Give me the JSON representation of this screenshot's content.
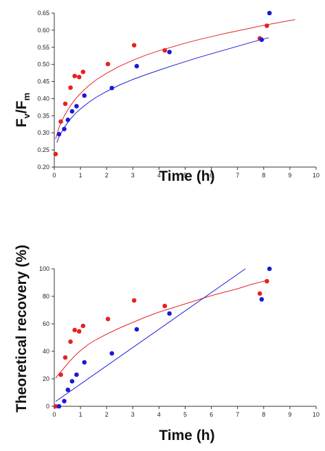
{
  "chart_data": [
    {
      "type": "scatter",
      "xlabel": "Time (h)",
      "ylabel_main": "F",
      "ylabel_sub1": "v",
      "ylabel_mid": "/F",
      "ylabel_sub2": "m",
      "xlim": [
        0,
        10
      ],
      "ylim": [
        0.2,
        0.65
      ],
      "xticks": [
        "0",
        "1",
        "2",
        "3",
        "4",
        "5",
        "6",
        "7",
        "8",
        "9",
        "10"
      ],
      "yticks": [
        "0.20",
        "0.25",
        "0.30",
        "0.35",
        "0.40",
        "0.45",
        "0.50",
        "0.55",
        "0.60",
        "0.65"
      ],
      "grid": false,
      "series": [
        {
          "color": "#e52222",
          "points": [
            [
              0.05,
              0.238
            ],
            [
              0.25,
              0.333
            ],
            [
              0.42,
              0.385
            ],
            [
              0.62,
              0.432
            ],
            [
              0.78,
              0.466
            ],
            [
              0.95,
              0.463
            ],
            [
              1.1,
              0.478
            ],
            [
              2.05,
              0.501
            ],
            [
              3.05,
              0.556
            ],
            [
              4.22,
              0.541
            ],
            [
              7.85,
              0.576
            ],
            [
              8.12,
              0.613
            ]
          ],
          "fit": [
            [
              0.05,
              0.282
            ],
            [
              0.2,
              0.32
            ],
            [
              0.4,
              0.352
            ],
            [
              0.6,
              0.378
            ],
            [
              0.8,
              0.398
            ],
            [
              1.0,
              0.415
            ],
            [
              1.3,
              0.437
            ],
            [
              1.6,
              0.455
            ],
            [
              2.0,
              0.474
            ],
            [
              2.5,
              0.495
            ],
            [
              3.0,
              0.512
            ],
            [
              3.5,
              0.527
            ],
            [
              4.0,
              0.54
            ],
            [
              4.5,
              0.551
            ],
            [
              5.0,
              0.562
            ],
            [
              5.5,
              0.572
            ],
            [
              6.0,
              0.581
            ],
            [
              6.5,
              0.59
            ],
            [
              7.0,
              0.598
            ],
            [
              7.5,
              0.606
            ],
            [
              8.0,
              0.614
            ],
            [
              8.5,
              0.621
            ],
            [
              9.2,
              0.631
            ]
          ]
        },
        {
          "color": "#1a1ad6",
          "points": [
            [
              0.18,
              0.296
            ],
            [
              0.38,
              0.311
            ],
            [
              0.52,
              0.338
            ],
            [
              0.68,
              0.363
            ],
            [
              0.85,
              0.378
            ],
            [
              1.15,
              0.409
            ],
            [
              2.2,
              0.431
            ],
            [
              3.15,
              0.495
            ],
            [
              4.4,
              0.536
            ],
            [
              7.92,
              0.572
            ],
            [
              8.22,
              0.65
            ]
          ],
          "fit": [
            [
              0.1,
              0.272
            ],
            [
              0.2,
              0.292
            ],
            [
              0.4,
              0.318
            ],
            [
              0.6,
              0.339
            ],
            [
              0.8,
              0.356
            ],
            [
              1.0,
              0.37
            ],
            [
              1.3,
              0.388
            ],
            [
              1.6,
              0.404
            ],
            [
              2.0,
              0.421
            ],
            [
              2.5,
              0.44
            ],
            [
              3.0,
              0.456
            ],
            [
              3.5,
              0.47
            ],
            [
              4.0,
              0.483
            ],
            [
              4.5,
              0.496
            ],
            [
              5.0,
              0.508
            ],
            [
              5.5,
              0.52
            ],
            [
              6.0,
              0.531
            ],
            [
              6.5,
              0.542
            ],
            [
              7.0,
              0.553
            ],
            [
              7.5,
              0.564
            ],
            [
              8.2,
              0.578
            ]
          ]
        }
      ]
    },
    {
      "type": "scatter",
      "xlabel": "Time (h)",
      "ylabel": "Theoretical recovery (%)",
      "xlim": [
        0,
        10
      ],
      "ylim": [
        0,
        100
      ],
      "xticks": [
        "0",
        "1",
        "2",
        "3",
        "4",
        "5",
        "6",
        "7",
        "8",
        "9",
        "10"
      ],
      "yticks": [
        "0",
        "20",
        "40",
        "60",
        "80",
        "100"
      ],
      "grid": false,
      "series": [
        {
          "color": "#e52222",
          "points": [
            [
              0.05,
              0
            ],
            [
              0.25,
              23
            ],
            [
              0.42,
              35.5
            ],
            [
              0.62,
              47
            ],
            [
              0.78,
              55.5
            ],
            [
              0.95,
              54.5
            ],
            [
              1.1,
              58.5
            ],
            [
              2.05,
              63.5
            ],
            [
              3.05,
              77
            ],
            [
              4.22,
              73
            ],
            [
              7.85,
              82
            ],
            [
              8.12,
              91
            ]
          ],
          "fit": [
            [
              0.05,
              20.5
            ],
            [
              0.2,
              24
            ],
            [
              0.4,
              28.5
            ],
            [
              0.6,
              33
            ],
            [
              0.8,
              37
            ],
            [
              1.0,
              40.5
            ],
            [
              1.3,
              45
            ],
            [
              1.6,
              48.5
            ],
            [
              2.0,
              52.5
            ],
            [
              2.5,
              57
            ],
            [
              3.0,
              61
            ],
            [
              3.5,
              65
            ],
            [
              4.0,
              68.5
            ],
            [
              4.5,
              71.5
            ],
            [
              5.0,
              74.5
            ],
            [
              5.5,
              77.5
            ],
            [
              6.0,
              80.5
            ],
            [
              6.5,
              83
            ],
            [
              7.0,
              85.5
            ],
            [
              7.5,
              88.5
            ],
            [
              8.0,
              91
            ],
            [
              8.2,
              92
            ]
          ]
        },
        {
          "color": "#1a1ad6",
          "points": [
            [
              0.18,
              0
            ],
            [
              0.38,
              3.8
            ],
            [
              0.52,
              12
            ],
            [
              0.68,
              18.2
            ],
            [
              0.85,
              23
            ],
            [
              1.15,
              32
            ],
            [
              2.2,
              38.5
            ],
            [
              3.15,
              56
            ],
            [
              4.4,
              67.5
            ],
            [
              7.92,
              77.8
            ],
            [
              8.22,
              100
            ]
          ],
          "fit": [
            [
              0.05,
              3.5
            ],
            [
              7.3,
              100
            ]
          ]
        }
      ]
    }
  ]
}
